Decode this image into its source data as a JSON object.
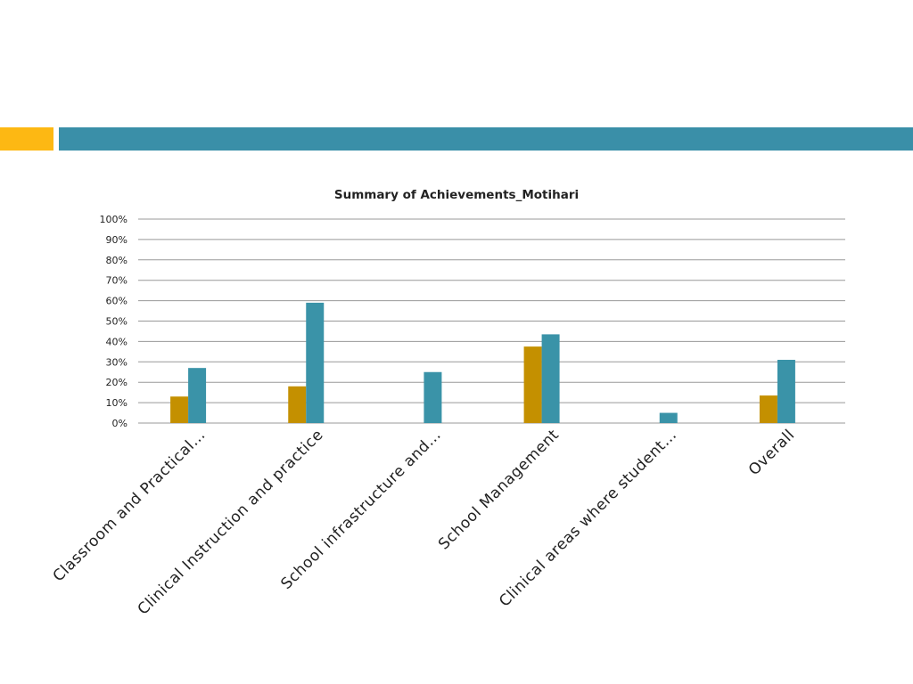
{
  "colors": {
    "accent_left": "#FDB813",
    "accent_bar": "#3A8FA8",
    "gridline": "#999999"
  },
  "chart_data": {
    "type": "bar",
    "title": "Summary of Achievements_Motihari",
    "categories": [
      "Classroom and Practical…",
      "Clinical Instruction and practice",
      "School infrastructure and…",
      "School Management",
      "Clinical areas where student…",
      "Overall"
    ],
    "series": [
      {
        "color": "#C49000",
        "values": [
          13,
          18,
          null,
          37.5,
          null,
          13.5
        ]
      },
      {
        "color": "#3A93A8",
        "values": [
          27,
          59,
          25,
          43.5,
          5,
          31
        ]
      }
    ],
    "ylim": [
      0,
      100
    ],
    "yticks": [
      "0%",
      "10%",
      "20%",
      "30%",
      "40%",
      "50%",
      "60%",
      "70%",
      "80%",
      "90%",
      "100%"
    ],
    "grid": true,
    "legend": "none"
  }
}
